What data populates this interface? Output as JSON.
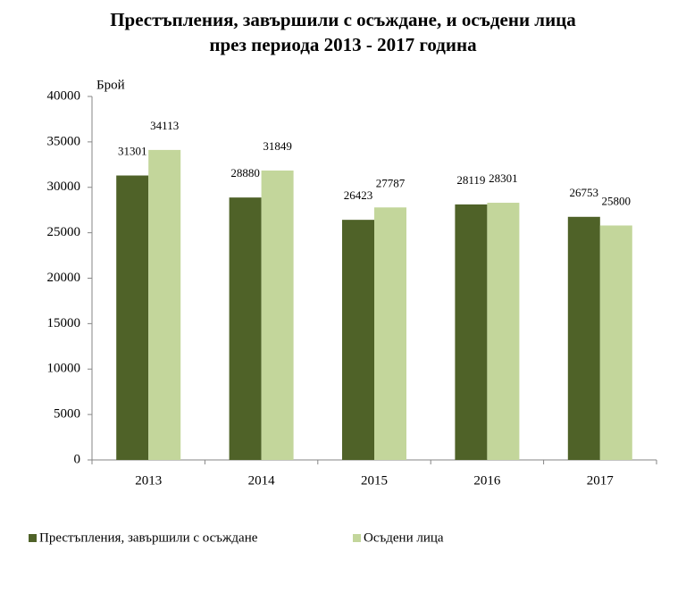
{
  "chart_data": {
    "type": "bar",
    "title": [
      "Престъпления, завършили с осъждане, и осъдени лица",
      "през периода 2013 - 2017 година"
    ],
    "y_label": "Брой",
    "categories": [
      "2013",
      "2014",
      "2015",
      "2016",
      "2017"
    ],
    "series": [
      {
        "name": "Престъпления, завършили с осъждане",
        "color": "#4f6228",
        "values": [
          31301,
          28880,
          26423,
          28119,
          26753
        ]
      },
      {
        "name": "Осъдени лица",
        "color": "#c3d69b",
        "values": [
          34113,
          31849,
          27787,
          28301,
          25800
        ]
      }
    ],
    "ylim": [
      0,
      40000
    ],
    "yticks": [
      0,
      5000,
      10000,
      15000,
      20000,
      25000,
      30000,
      35000,
      40000
    ],
    "grid": false,
    "legend": "bottom"
  }
}
